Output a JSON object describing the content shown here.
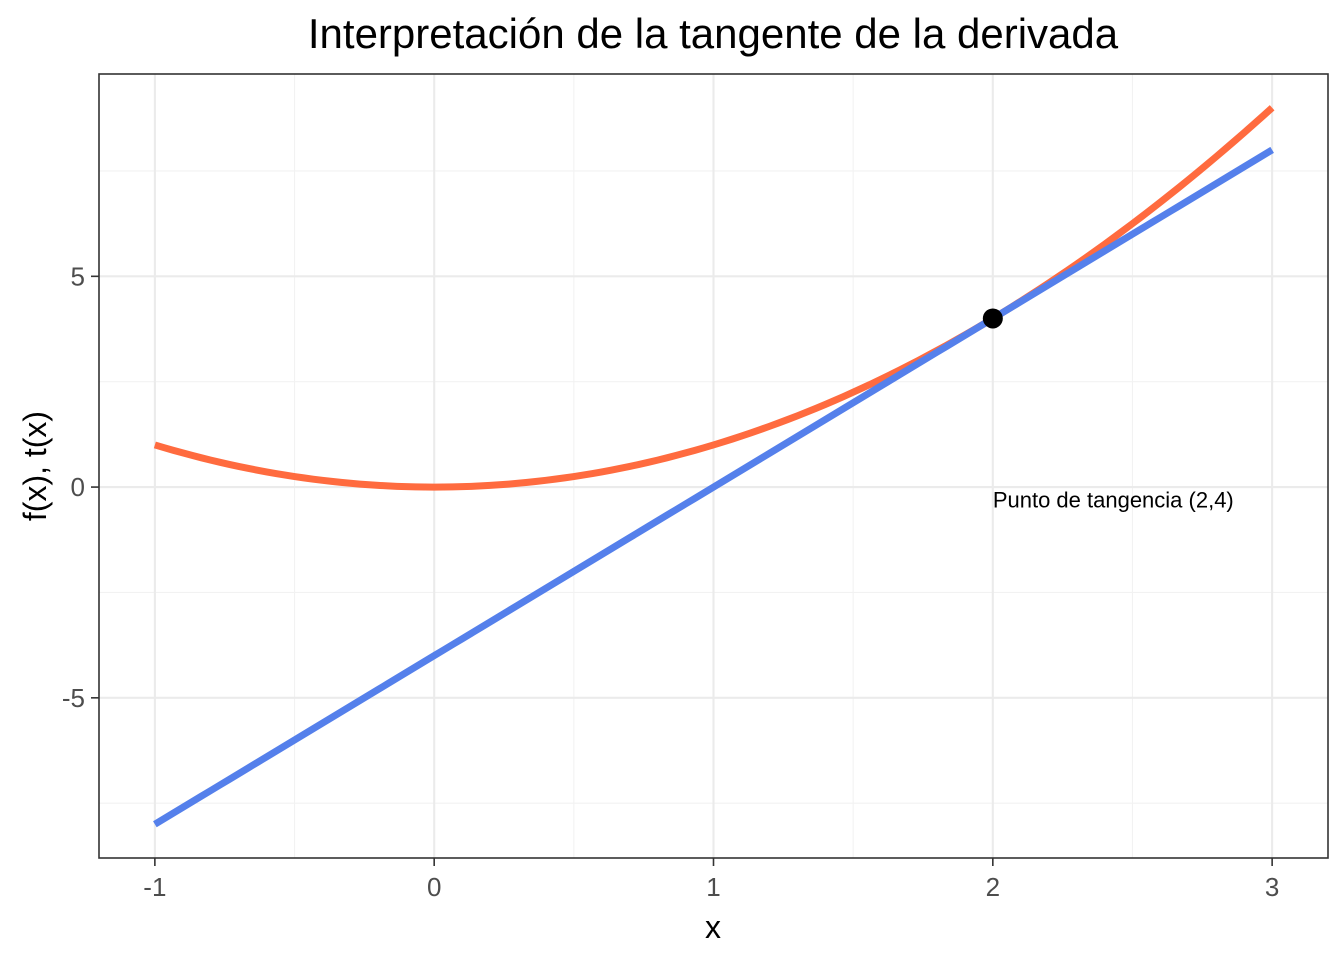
{
  "chart_data": {
    "type": "line",
    "title": "Interpretación de la tangente de la derivada",
    "xlabel": "x",
    "ylabel": "f(x), t(x)",
    "xlim": [
      -1.2,
      3.2
    ],
    "ylim": [
      -8.8,
      9.8
    ],
    "x_ticks": [
      -1,
      0,
      1,
      2,
      3
    ],
    "x_tick_labels": [
      "-1",
      "0",
      "1",
      "2",
      "3"
    ],
    "y_ticks": [
      -5,
      0,
      5
    ],
    "y_tick_labels": [
      "-5",
      "0",
      "5"
    ],
    "x_minor": [
      -0.5,
      0.5,
      1.5,
      2.5
    ],
    "y_minor": [
      -7.5,
      -2.5,
      2.5,
      7.5
    ],
    "grid": true,
    "legend": "none",
    "series": [
      {
        "function": "x^2",
        "color": "#ff6b3f",
        "x": [
          -1,
          -0.75,
          -0.5,
          -0.25,
          0,
          0.25,
          0.5,
          0.75,
          1,
          1.25,
          1.5,
          1.75,
          2,
          2.25,
          2.5,
          2.75,
          3
        ],
        "values": [
          1,
          0.5625,
          0.25,
          0.0625,
          0,
          0.0625,
          0.25,
          0.5625,
          1,
          1.5625,
          2.25,
          3.0625,
          4,
          5.0625,
          6.25,
          7.5625,
          9
        ]
      },
      {
        "function": "4x - 4",
        "color": "#5580eb",
        "x": [
          -1,
          3
        ],
        "values": [
          -8,
          8
        ]
      }
    ],
    "points": [
      {
        "x": 2,
        "y": 4,
        "color": "#000000"
      }
    ],
    "annotations": [
      {
        "text": "Punto de tangencia (2,4)",
        "x": 2,
        "y": -0.3
      }
    ]
  }
}
